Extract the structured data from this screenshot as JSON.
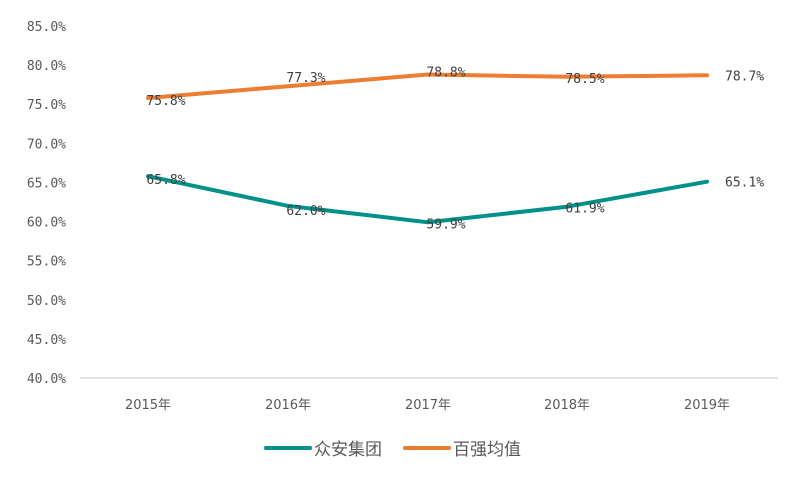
{
  "chart_data": {
    "type": "line",
    "title": "",
    "xlabel": "",
    "ylabel": "",
    "categories": [
      "2015年",
      "2016年",
      "2017年",
      "2018年",
      "2019年"
    ],
    "series": [
      {
        "name": "众安集团",
        "color": "#00918A",
        "values": [
          65.8,
          62.0,
          59.9,
          61.9,
          65.1
        ],
        "labels": [
          "65.8%",
          "62.0%",
          "59.9%",
          "61.9%",
          "65.1%"
        ]
      },
      {
        "name": "百强均值",
        "color": "#ED7D31",
        "values": [
          75.8,
          77.3,
          78.8,
          78.5,
          78.7
        ],
        "labels": [
          "75.8%",
          "77.3%",
          "78.8%",
          "78.5%",
          "78.7%"
        ]
      }
    ],
    "ylim": [
      40.0,
      85.0
    ],
    "yticks": [
      "85.0%",
      "80.0%",
      "75.0%",
      "70.0%",
      "65.0%",
      "60.0%",
      "55.0%",
      "50.0%",
      "45.0%",
      "40.0%"
    ],
    "grid": false,
    "legend_position": "bottom"
  }
}
